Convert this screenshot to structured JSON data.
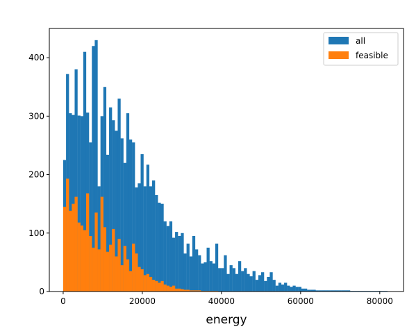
{
  "chart_data": {
    "type": "bar",
    "subtype": "histogram",
    "title": "",
    "xlabel": "energy",
    "ylabel": "",
    "xlim": [
      -3500,
      86000
    ],
    "ylim": [
      0,
      450
    ],
    "bin_start": 0,
    "bin_width": 725,
    "xticks": [
      0,
      20000,
      40000,
      60000,
      80000
    ],
    "yticks": [
      0,
      100,
      200,
      300,
      400
    ],
    "grid": false,
    "legend_position": "top-right",
    "series": [
      {
        "name": "all",
        "color": "#1f77b4",
        "values": [
          225,
          372,
          305,
          302,
          380,
          301,
          300,
          410,
          306,
          255,
          420,
          430,
          180,
          300,
          350,
          234,
          315,
          293,
          275,
          330,
          262,
          220,
          305,
          260,
          255,
          178,
          185,
          235,
          180,
          217,
          180,
          190,
          165,
          152,
          150,
          120,
          112,
          120,
          92,
          102,
          95,
          100,
          65,
          82,
          60,
          95,
          72,
          62,
          48,
          50,
          75,
          52,
          48,
          82,
          40,
          40,
          62,
          30,
          45,
          40,
          30,
          52,
          35,
          40,
          30,
          26,
          35,
          20,
          28,
          33,
          18,
          25,
          33,
          20,
          10,
          15,
          12,
          15,
          10,
          8,
          10,
          8,
          8,
          5,
          5,
          3,
          3,
          3,
          2,
          2,
          2,
          2,
          2,
          2,
          2,
          2,
          2,
          2,
          2,
          2,
          1,
          1,
          1,
          1,
          1,
          1,
          1,
          1,
          1,
          1,
          1,
          1,
          1
        ]
      },
      {
        "name": "feasible",
        "color": "#ff7f0e",
        "values": [
          145,
          193,
          138,
          150,
          162,
          118,
          113,
          105,
          168,
          95,
          75,
          135,
          72,
          162,
          110,
          68,
          80,
          107,
          60,
          90,
          45,
          78,
          55,
          35,
          82,
          65,
          42,
          38,
          28,
          30,
          25,
          20,
          18,
          15,
          18,
          12,
          10,
          8,
          10,
          5,
          5,
          4,
          3,
          3,
          2,
          2,
          2,
          2,
          1,
          1,
          1,
          1,
          1,
          1
        ]
      }
    ]
  }
}
